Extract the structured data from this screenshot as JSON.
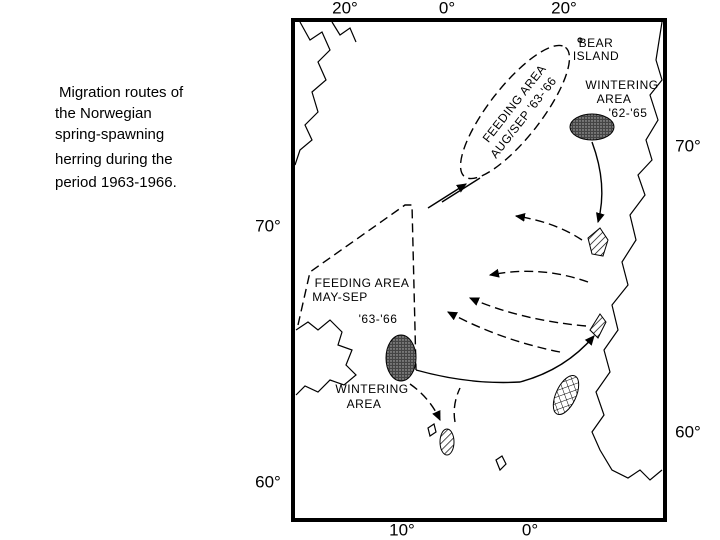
{
  "caption": {
    "lines": [
      "Migration routes of",
      "the Norwegian",
      "spring-spawning",
      "herring during the",
      "period 1963-1966."
    ]
  },
  "map": {
    "top_labels": [
      "20°",
      "0°",
      "20°"
    ],
    "bottom_labels": [
      "10°",
      "0°"
    ],
    "left_labels": [
      "70°",
      "60°"
    ],
    "right_labels": [
      "70°",
      "60°"
    ],
    "bear_island": [
      "BEAR",
      "ISLAND"
    ],
    "wintering_north": [
      "WINTERING",
      "AREA",
      "'62-'65"
    ],
    "feeding_north": [
      "FEEDING AREA",
      "AUG/SEP '63-'66"
    ],
    "feeding_south": [
      "FEEDING AREA",
      "MAY-SEP",
      "'63-'66"
    ],
    "wintering_south": [
      "WINTERING",
      "AREA"
    ]
  }
}
